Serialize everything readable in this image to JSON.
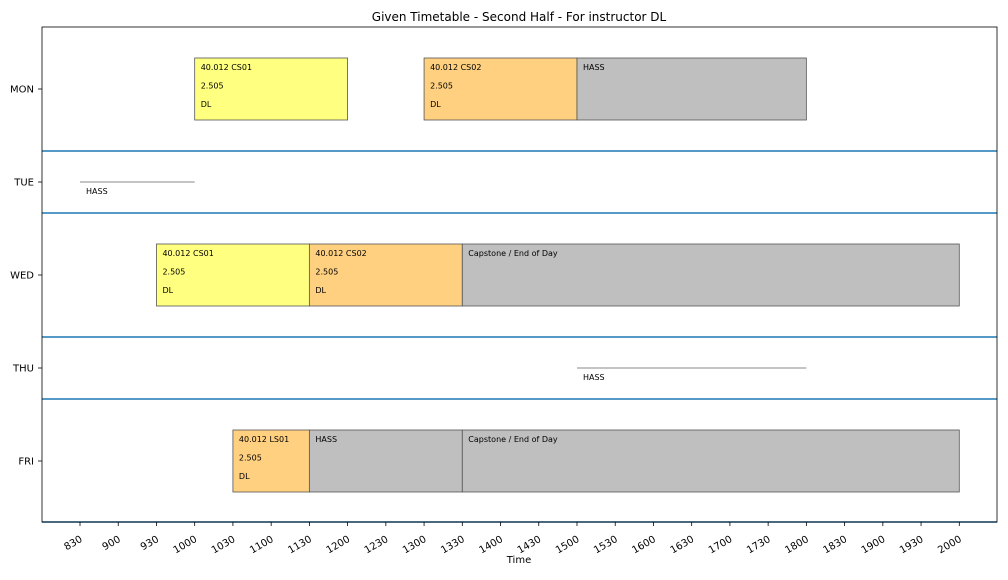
{
  "chart_data": {
    "type": "timeline",
    "title": "Given Timetable - Second Half - For instructor DL",
    "xlabel": "Time",
    "ylabel": "",
    "x_ticks": [
      "830",
      "900",
      "930",
      "1000",
      "1030",
      "1100",
      "1130",
      "1200",
      "1230",
      "1300",
      "1330",
      "1400",
      "1430",
      "1500",
      "1530",
      "1600",
      "1630",
      "1700",
      "1730",
      "1800",
      "1830",
      "1900",
      "1930",
      "2000"
    ],
    "days": [
      "MON",
      "TUE",
      "WED",
      "THU",
      "FRI"
    ],
    "colors": {
      "CS01": "#ffff80",
      "CS02": "#ffd080",
      "LS01": "#ffd080",
      "HASS": "#bfbfbf",
      "Capstone": "#bfbfbf",
      "separator": "#1f77b4",
      "border": "#555555",
      "marker_line": "#888888"
    },
    "events": [
      {
        "day": "MON",
        "start": "1000",
        "end": "1200",
        "kind": "CS01",
        "lines": [
          "40.012 CS01",
          "2.505",
          "DL"
        ]
      },
      {
        "day": "MON",
        "start": "1300",
        "end": "1500",
        "kind": "CS02",
        "lines": [
          "40.012 CS02",
          "2.505",
          "DL"
        ]
      },
      {
        "day": "MON",
        "start": "1500",
        "end": "1800",
        "kind": "HASS",
        "lines": [
          "HASS"
        ]
      },
      {
        "day": "TUE",
        "start": "830",
        "end": "1000",
        "kind": "marker",
        "lines": [
          "HASS"
        ]
      },
      {
        "day": "WED",
        "start": "930",
        "end": "1130",
        "kind": "CS01",
        "lines": [
          "40.012 CS01",
          "2.505",
          "DL"
        ]
      },
      {
        "day": "WED",
        "start": "1130",
        "end": "1330",
        "kind": "CS02",
        "lines": [
          "40.012 CS02",
          "2.505",
          "DL"
        ]
      },
      {
        "day": "WED",
        "start": "1330",
        "end": "2000",
        "kind": "Capstone",
        "lines": [
          "Capstone / End of Day"
        ]
      },
      {
        "day": "THU",
        "start": "1500",
        "end": "1800",
        "kind": "marker",
        "lines": [
          "HASS"
        ]
      },
      {
        "day": "FRI",
        "start": "1030",
        "end": "1130",
        "kind": "LS01",
        "lines": [
          "40.012 LS01",
          "2.505",
          "DL"
        ]
      },
      {
        "day": "FRI",
        "start": "1130",
        "end": "1330",
        "kind": "HASS",
        "lines": [
          "HASS"
        ]
      },
      {
        "day": "FRI",
        "start": "1330",
        "end": "2000",
        "kind": "Capstone",
        "lines": [
          "Capstone / End of Day"
        ]
      }
    ]
  }
}
